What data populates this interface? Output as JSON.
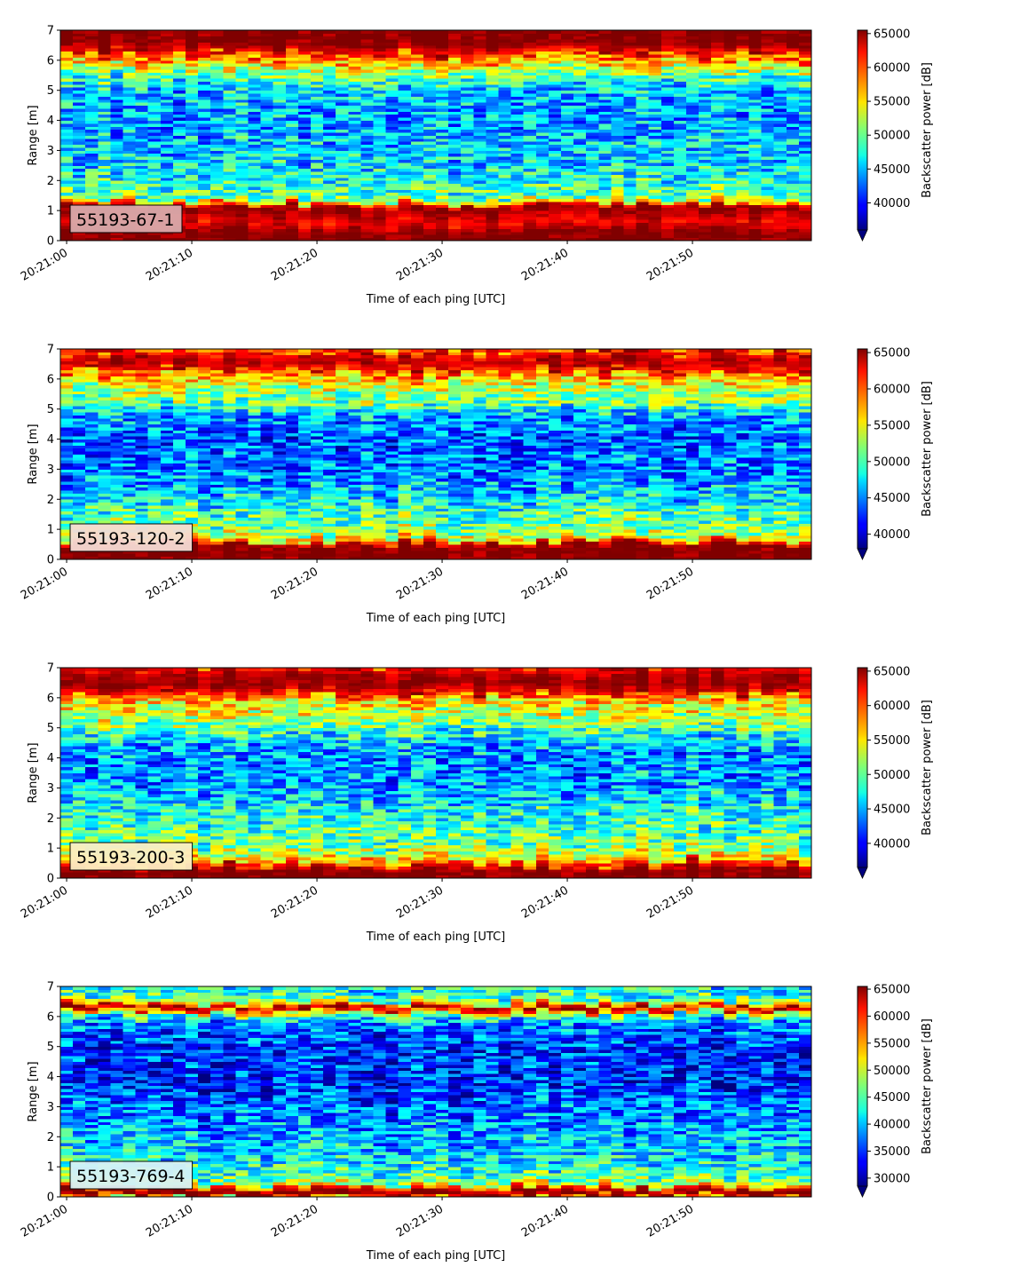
{
  "figure": {
    "panels": [
      {
        "label": "55193-67-1",
        "label_bg": "#d9aaab"
      },
      {
        "label": "55193-120-2",
        "label_bg": "#f6dcd4"
      },
      {
        "label": "55193-200-3",
        "label_bg": "#fdeec2"
      },
      {
        "label": "55193-769-4",
        "label_bg": "#d7f2f6"
      }
    ]
  },
  "chart_data": [
    {
      "type": "heatmap",
      "label": "55193-67-1",
      "xlabel": "Time of each ping [UTC]",
      "ylabel": "Range [m]",
      "xticks": [
        "20:21:00",
        "20:21:10",
        "20:21:20",
        "20:21:30",
        "20:21:40",
        "20:21:50"
      ],
      "ylim": [
        0,
        7
      ],
      "yticks": [
        0,
        1,
        2,
        3,
        4,
        5,
        6,
        7
      ],
      "x_range_seconds": [
        -0.5,
        59.5
      ],
      "colorbar": {
        "label": "Backscatter power [dB]",
        "min": 36000,
        "max": 65500,
        "ticks": [
          40000,
          45000,
          50000,
          55000,
          60000,
          65000
        ],
        "extend": "min"
      },
      "colormap": "jet",
      "profile": {
        "range_m": [
          0.0,
          0.2,
          0.3,
          0.6,
          0.9,
          1.1,
          1.25,
          1.4,
          1.8,
          2.3,
          3.0,
          4.0,
          5.0,
          5.5,
          5.9,
          6.2,
          6.4,
          6.6,
          7.0
        ],
        "power": [
          65500,
          65500,
          65500,
          62000,
          64000,
          65500,
          58000,
          50000,
          49000,
          47000,
          46000,
          44500,
          45500,
          50000,
          56000,
          60000,
          63500,
          65500,
          65500
        ]
      }
    },
    {
      "type": "heatmap",
      "label": "55193-120-2",
      "xlabel": "Time of each ping [UTC]",
      "ylabel": "Range [m]",
      "xticks": [
        "20:21:00",
        "20:21:10",
        "20:21:20",
        "20:21:30",
        "20:21:40",
        "20:21:50"
      ],
      "ylim": [
        0,
        7
      ],
      "yticks": [
        0,
        1,
        2,
        3,
        4,
        5,
        6,
        7
      ],
      "x_range_seconds": [
        -0.5,
        59.5
      ],
      "colorbar": {
        "label": "Backscatter power [dB]",
        "min": 38000,
        "max": 65500,
        "ticks": [
          40000,
          45000,
          50000,
          55000,
          60000,
          65000
        ],
        "extend": "min"
      },
      "colormap": "jet",
      "profile": {
        "range_m": [
          0.0,
          0.2,
          0.3,
          0.5,
          0.6,
          0.8,
          1.2,
          1.6,
          2.2,
          3.0,
          4.0,
          4.8,
          5.2,
          5.6,
          6.0,
          6.3,
          6.6,
          7.0
        ],
        "power": [
          65500,
          65500,
          65500,
          65500,
          58000,
          53000,
          51000,
          50000,
          47000,
          45000,
          44000,
          46000,
          51000,
          53000,
          56000,
          61000,
          64500,
          60000
        ]
      }
    },
    {
      "type": "heatmap",
      "label": "55193-200-3",
      "xlabel": "Time of each ping [UTC]",
      "ylabel": "Range [m]",
      "xticks": [
        "20:21:00",
        "20:21:10",
        "20:21:20",
        "20:21:30",
        "20:21:40",
        "20:21:50"
      ],
      "ylim": [
        0,
        7
      ],
      "yticks": [
        0,
        1,
        2,
        3,
        4,
        5,
        6,
        7
      ],
      "x_range_seconds": [
        -0.5,
        59.5
      ],
      "colorbar": {
        "label": "Backscatter power [dB]",
        "min": 36500,
        "max": 65500,
        "ticks": [
          40000,
          45000,
          50000,
          55000,
          60000,
          65000
        ],
        "extend": "min"
      },
      "colormap": "jet",
      "profile": {
        "range_m": [
          0.0,
          0.15,
          0.3,
          0.5,
          0.7,
          1.0,
          1.5,
          2.2,
          3.0,
          4.0,
          4.6,
          5.1,
          5.6,
          6.0,
          6.2,
          6.5,
          6.8,
          7.0
        ],
        "power": [
          65500,
          65500,
          65500,
          60000,
          55000,
          51000,
          50000,
          48000,
          45000,
          44000,
          46000,
          51000,
          54000,
          56000,
          62000,
          65500,
          64000,
          62000
        ]
      }
    },
    {
      "type": "heatmap",
      "label": "55193-769-4",
      "xlabel": "Time of each ping [UTC]",
      "ylabel": "Range [m]",
      "xticks": [
        "20:21:00",
        "20:21:10",
        "20:21:20",
        "20:21:30",
        "20:21:40",
        "20:21:50"
      ],
      "ylim": [
        0,
        7
      ],
      "yticks": [
        0,
        1,
        2,
        3,
        4,
        5,
        6,
        7
      ],
      "x_range_seconds": [
        -0.5,
        59.5
      ],
      "colorbar": {
        "label": "Backscatter power [dB]",
        "min": 28500,
        "max": 65500,
        "ticks": [
          30000,
          35000,
          40000,
          45000,
          50000,
          55000,
          60000,
          65000
        ],
        "extend": "min"
      },
      "colormap": "jet",
      "profile": {
        "range_m": [
          0.0,
          0.1,
          0.2,
          0.3,
          0.4,
          0.7,
          1.0,
          1.5,
          2.2,
          3.0,
          4.0,
          5.0,
          5.8,
          6.1,
          6.3,
          6.5,
          6.8,
          7.0
        ],
        "power": [
          52000,
          65500,
          65500,
          60000,
          50000,
          45000,
          43000,
          41000,
          39000,
          37000,
          34000,
          35000,
          38000,
          47000,
          65500,
          48000,
          42000,
          44000
        ]
      }
    }
  ]
}
